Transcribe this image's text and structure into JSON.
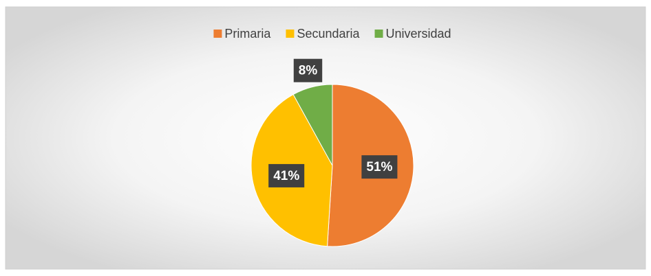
{
  "chart_data": {
    "type": "pie",
    "categories": [
      "Primaria",
      "Secundaria",
      "Universidad"
    ],
    "values": [
      51,
      41,
      8
    ],
    "value_labels": [
      "51%",
      "41%",
      "8%"
    ],
    "colors": [
      "#ED7D31",
      "#FFC000",
      "#70AD47"
    ],
    "legend": "top"
  }
}
